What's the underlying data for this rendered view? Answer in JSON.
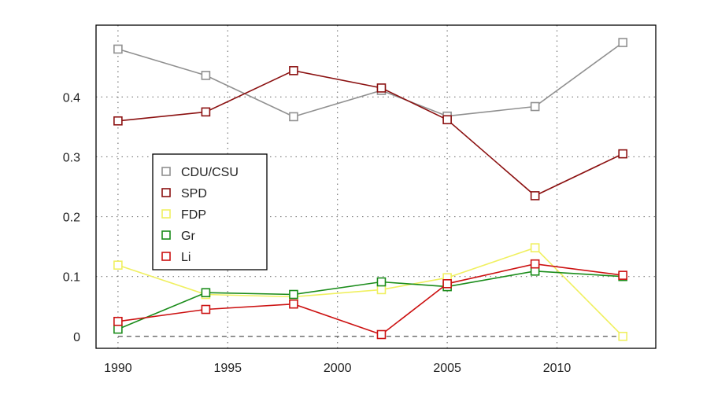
{
  "chart_data": {
    "type": "line",
    "title": "",
    "xlabel": "",
    "ylabel": "",
    "x": [
      1990,
      1994,
      1998,
      2002,
      2005,
      2009,
      2013
    ],
    "xlim": [
      1989,
      2014.5
    ],
    "ylim": [
      -0.02,
      0.52
    ],
    "xticks": [
      1990,
      1995,
      2000,
      2005,
      2010
    ],
    "yticks": [
      0,
      0.1,
      0.2,
      0.3,
      0.4
    ],
    "xtick_labels": [
      "1990",
      "1995",
      "2000",
      "2005",
      "2010"
    ],
    "ytick_labels": [
      "0",
      "0.1",
      "0.2",
      "0.3",
      "0.4"
    ],
    "grid": true,
    "legend_position": "center-left",
    "series": [
      {
        "name": "CDU/CSU",
        "color": "#909090",
        "values": [
          0.48,
          0.436,
          0.367,
          0.411,
          0.368,
          0.384,
          0.491
        ]
      },
      {
        "name": "SPD",
        "color": "#8b1010",
        "values": [
          0.36,
          0.375,
          0.444,
          0.415,
          0.362,
          0.235,
          0.305
        ]
      },
      {
        "name": "FDP",
        "color": "#f0f060",
        "values": [
          0.119,
          0.07,
          0.066,
          0.078,
          0.098,
          0.148,
          0.0
        ]
      },
      {
        "name": "Gr",
        "color": "#1a8c1a",
        "values": [
          0.012,
          0.073,
          0.07,
          0.091,
          0.083,
          0.109,
          0.1
        ]
      },
      {
        "name": "Li",
        "color": "#cc1111",
        "values": [
          0.025,
          0.045,
          0.054,
          0.003,
          0.088,
          0.121,
          0.102
        ]
      }
    ]
  }
}
